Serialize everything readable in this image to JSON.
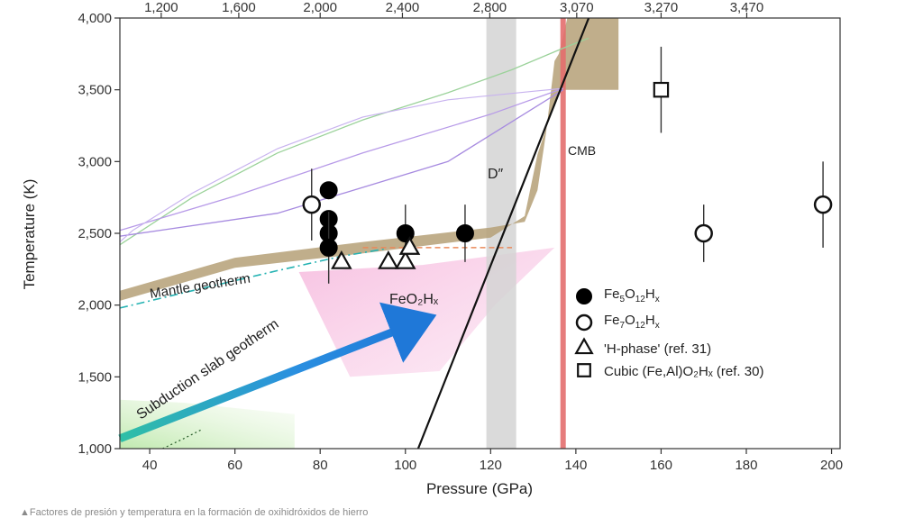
{
  "chart_data": {
    "type": "scatter",
    "xlabel": "Pressure (GPa)",
    "ylabel": "Temperature (K)",
    "xlim": [
      33,
      202
    ],
    "ylim": [
      1000,
      4000
    ],
    "x_ticks": [
      40,
      60,
      80,
      100,
      120,
      140,
      160,
      180,
      200
    ],
    "y_ticks": [
      1000,
      1500,
      2000,
      2500,
      3000,
      3500,
      4000
    ],
    "y_tick_labels": [
      "1,000",
      "1,500",
      "2,000",
      "2,500",
      "3,000",
      "3,500",
      "4,000"
    ],
    "top_axis": {
      "labels": [
        "1,200",
        "1,600",
        "2,000",
        "2,400",
        "2,800",
        "3,070",
        "3,270",
        "3,470"
      ],
      "at_pressure": [
        42.7,
        60.9,
        80.0,
        99.3,
        119.8,
        140.2,
        160.0,
        180.1
      ]
    },
    "series": [
      {
        "name": "Fe5O12Hx",
        "marker": "filled-circle",
        "points": [
          [
            82,
            2800,
            0
          ],
          [
            82,
            2600,
            0
          ],
          [
            82,
            2500,
            0
          ],
          [
            82,
            2400,
            250
          ],
          [
            100,
            2500,
            200
          ],
          [
            114,
            2500,
            200
          ]
        ]
      },
      {
        "name": "Fe7O12Hx",
        "marker": "open-circle",
        "points": [
          [
            78,
            2700,
            250
          ],
          [
            170,
            2500,
            200
          ],
          [
            198,
            2700,
            300
          ]
        ]
      },
      {
        "name": "'H-phase' (ref. 31)",
        "marker": "open-triangle",
        "points": [
          [
            85,
            2300,
            0
          ],
          [
            96,
            2300,
            0
          ],
          [
            100,
            2300,
            0
          ],
          [
            101,
            2400,
            0
          ]
        ]
      },
      {
        "name": "Cubic (Fe,Al)O2Hx (ref. 30)",
        "marker": "open-square",
        "points": [
          [
            160,
            3500,
            300
          ]
        ]
      }
    ],
    "legend": {
      "entries": [
        {
          "marker": "filled-circle",
          "base": "Fe",
          "s1": "5",
          "mid": "O",
          "s2": "12",
          "end": "H",
          "s3": "x",
          "tail": ""
        },
        {
          "marker": "open-circle",
          "base": "Fe",
          "s1": "7",
          "mid": "O",
          "s2": "12",
          "end": "H",
          "s3": "x",
          "tail": ""
        },
        {
          "marker": "open-triangle",
          "text": "'H-phase' (ref. 31)"
        },
        {
          "marker": "open-square",
          "text": "Cubic (Fe,Al)O₂Hₓ (ref. 30)"
        }
      ]
    },
    "regions": {
      "mantle_geotherm": {
        "label": "Mantle geotherm",
        "upper": [
          [
            33,
            2100
          ],
          [
            60,
            2330
          ],
          [
            90,
            2440
          ],
          [
            120,
            2540
          ],
          [
            128,
            2580
          ],
          [
            131,
            2800
          ],
          [
            133,
            3200
          ],
          [
            135,
            3700
          ],
          [
            136,
            3750
          ],
          [
            138,
            4000
          ],
          [
            150,
            4000
          ]
        ],
        "lower": [
          [
            150,
            3500
          ],
          [
            136,
            3500
          ],
          [
            131,
            3050
          ],
          [
            128,
            2620
          ],
          [
            120,
            2470
          ],
          [
            90,
            2360
          ],
          [
            60,
            2260
          ],
          [
            33,
            2030
          ]
        ],
        "color": "#b5a077"
      },
      "dprime_band": {
        "label": "D″",
        "x": [
          119,
          126
        ],
        "color": "#d4d4d4"
      },
      "cmb": {
        "label": "CMB",
        "x": 137,
        "color": "#e46e6e"
      },
      "feo2hx": {
        "label": "FeO₂Hₓ",
        "color": "#f4b9db"
      },
      "slab_label": "Subduction slab geotherm",
      "slab_arrow": {
        "from": [
          33,
          1070
        ],
        "to": [
          102,
          1870
        ]
      }
    }
  },
  "caption": "▲Factores de presión y temperatura en la formación de oxihidróxidos de hierro"
}
